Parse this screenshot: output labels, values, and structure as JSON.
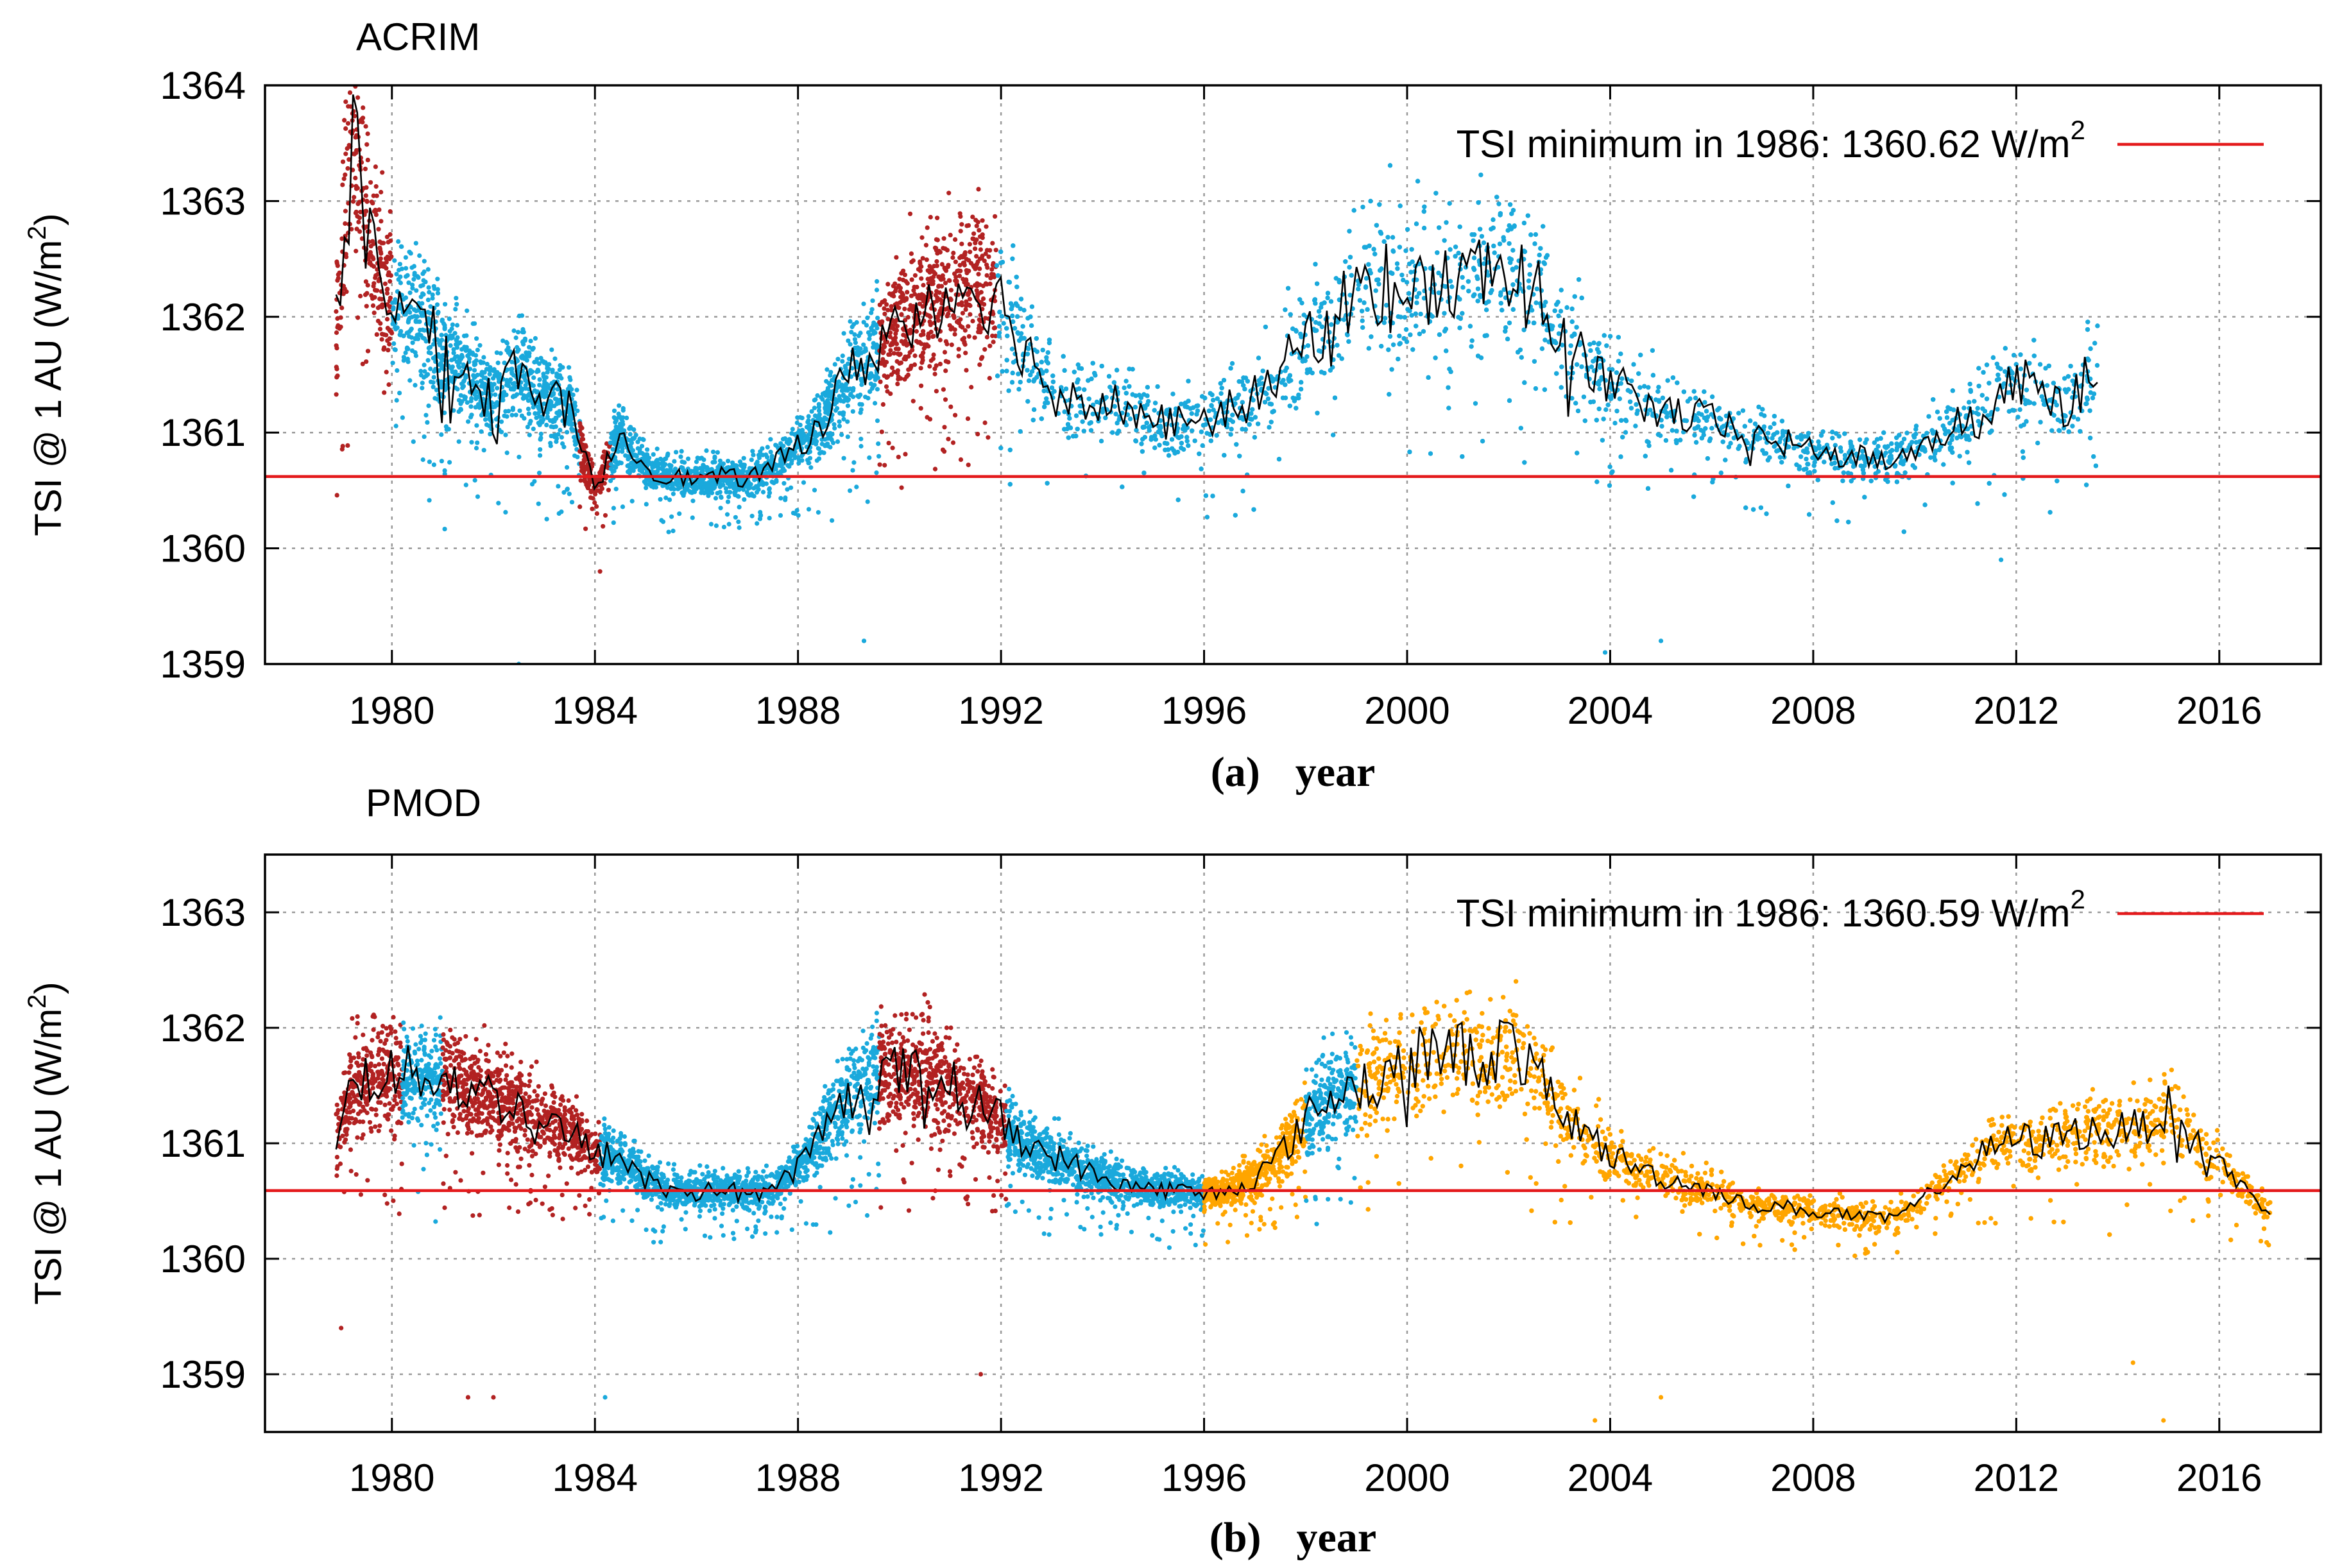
{
  "colors": {
    "acrim_red": "#b22222",
    "cyan": "#1aa9dc",
    "orange": "#ffa500",
    "minimum_line": "#e41a1c",
    "mean_line": "#000000",
    "grid": "#999999"
  },
  "chart_data": [
    {
      "type": "scatter",
      "panel_label": "(a)",
      "title": "ACRIM",
      "xlabel": "year",
      "ylabel": "TSI @ 1 AU (W/m²)",
      "ylabel_main": "TSI @ 1 AU (W/m",
      "ylabel_sup": "2",
      "ylabel_close": ")",
      "xlim": [
        1977.5,
        2018
      ],
      "ylim": [
        1359,
        1364
      ],
      "xticks": [
        "1980",
        "1984",
        "1988",
        "1992",
        "1996",
        "2000",
        "2004",
        "2008",
        "2012",
        "2016"
      ],
      "yticks": [
        "1359",
        "1360",
        "1361",
        "1362",
        "1363",
        "1364"
      ],
      "grid": true,
      "legend": {
        "position": "top-right",
        "label_main": "TSI minimum in 1986: 1360.62 W/m",
        "label_sup": "2",
        "label": "TSI minimum in 1986: 1360.62 W/m²"
      },
      "minimum_value": 1360.62,
      "segments": [
        {
          "name": "red",
          "color": "#b22222",
          "x": [
            1978.9,
            1980.0
          ]
        },
        {
          "name": "cyan",
          "color": "#1aa9dc",
          "x": [
            1980.0,
            1983.7
          ]
        },
        {
          "name": "red",
          "color": "#b22222",
          "x": [
            1983.7,
            1984.3
          ]
        },
        {
          "name": "cyan",
          "color": "#1aa9dc",
          "x": [
            1984.3,
            1989.6
          ]
        },
        {
          "name": "red",
          "color": "#b22222",
          "x": [
            1989.6,
            1991.9
          ]
        },
        {
          "name": "cyan",
          "color": "#1aa9dc",
          "x": [
            1991.9,
            2013.6
          ]
        }
      ],
      "mean_curve": {
        "x": [
          1978.9,
          1979.2,
          1979.6,
          1980,
          1980.5,
          1981,
          1981.5,
          1982,
          1982.5,
          1983,
          1983.5,
          1984,
          1984.5,
          1985,
          1985.5,
          1986,
          1986.5,
          1987,
          1987.5,
          1988,
          1988.5,
          1989,
          1989.5,
          1990,
          1990.5,
          1991,
          1991.5,
          1992,
          1992.5,
          1993,
          1993.5,
          1994,
          1994.5,
          1995,
          1995.5,
          1996,
          1996.5,
          1997,
          1997.5,
          1998,
          1998.5,
          1999,
          1999.5,
          2000,
          2000.5,
          2001,
          2001.5,
          2002,
          2002.5,
          2003,
          2003.5,
          2004,
          2004.5,
          2005,
          2005.5,
          2006,
          2006.5,
          2007,
          2007.5,
          2008,
          2008.5,
          2009,
          2009.5,
          2010,
          2010.5,
          2011,
          2011.5,
          2012,
          2012.5,
          2013,
          2013.6
        ],
        "y": [
          1361.9,
          1363.6,
          1362.6,
          1362.2,
          1362.0,
          1361.7,
          1361.5,
          1361.3,
          1361.6,
          1361.3,
          1361.2,
          1360.5,
          1361.0,
          1360.7,
          1360.62,
          1360.6,
          1360.62,
          1360.6,
          1360.7,
          1360.9,
          1361.1,
          1361.5,
          1361.7,
          1362.0,
          1362.1,
          1362.2,
          1362.3,
          1362.1,
          1361.7,
          1361.4,
          1361.3,
          1361.3,
          1361.2,
          1361.1,
          1361.1,
          1361.1,
          1361.2,
          1361.3,
          1361.5,
          1361.8,
          1362.0,
          1362.2,
          1362.3,
          1362.3,
          1362.2,
          1362.3,
          1362.4,
          1362.5,
          1362.2,
          1361.9,
          1361.6,
          1361.4,
          1361.3,
          1361.2,
          1361.15,
          1361.1,
          1361.0,
          1360.95,
          1360.9,
          1360.85,
          1360.8,
          1360.78,
          1360.75,
          1360.85,
          1361.0,
          1361.1,
          1361.3,
          1361.45,
          1361.35,
          1361.2,
          1361.6
        ]
      },
      "spikes": [
        {
          "x": 1982.5,
          "y": 1359.0
        },
        {
          "x": 1984.1,
          "y": 1359.8
        },
        {
          "x": 1989.3,
          "y": 1359.2
        },
        {
          "x": 2003.9,
          "y": 1359.1
        },
        {
          "x": 2005.0,
          "y": 1359.2
        },
        {
          "x": 2011.7,
          "y": 1359.9
        }
      ]
    },
    {
      "type": "scatter",
      "panel_label": "(b)",
      "title": "PMOD",
      "xlabel": "year",
      "ylabel": "TSI @ 1 AU (W/m²)",
      "ylabel_main": "TSI @ 1 AU (W/m",
      "ylabel_sup": "2",
      "ylabel_close": ")",
      "xlim": [
        1977.5,
        2018
      ],
      "ylim": [
        1358.5,
        1363.5
      ],
      "xticks": [
        "1980",
        "1984",
        "1988",
        "1992",
        "1996",
        "2000",
        "2004",
        "2008",
        "2012",
        "2016"
      ],
      "yticks": [
        "1359",
        "1360",
        "1361",
        "1362",
        "1363"
      ],
      "grid": true,
      "legend": {
        "position": "top-right",
        "label_main": "TSI minimum in 1986: 1360.59 W/m",
        "label_sup": "2",
        "label": "TSI minimum in 1986: 1360.59 W/m²"
      },
      "minimum_value": 1360.59,
      "segments": [
        {
          "name": "red",
          "color": "#b22222",
          "x": [
            1978.9,
            1980.2
          ]
        },
        {
          "name": "cyan",
          "color": "#1aa9dc",
          "x": [
            1980.2,
            1981.0
          ]
        },
        {
          "name": "red",
          "color": "#b22222",
          "x": [
            1981.0,
            1984.1
          ]
        },
        {
          "name": "cyan",
          "color": "#1aa9dc",
          "x": [
            1984.1,
            1989.6
          ]
        },
        {
          "name": "red",
          "color": "#b22222",
          "x": [
            1989.6,
            1992.1
          ]
        },
        {
          "name": "cyan",
          "color": "#1aa9dc",
          "x": [
            1992.1,
            1996.0
          ]
        },
        {
          "name": "orange",
          "color": "#ffa500",
          "x": [
            1996.0,
            1998.0
          ]
        },
        {
          "name": "cyan",
          "color": "#1aa9dc",
          "x": [
            1998.0,
            1999.0
          ]
        },
        {
          "name": "orange",
          "color": "#ffa500",
          "x": [
            1999.0,
            2017.0
          ]
        }
      ],
      "mean_curve": {
        "x": [
          1978.9,
          1979.2,
          1979.6,
          1980,
          1980.5,
          1981,
          1981.5,
          1982,
          1982.5,
          1983,
          1983.5,
          1984,
          1984.5,
          1985,
          1985.5,
          1986,
          1986.5,
          1987,
          1987.5,
          1988,
          1988.5,
          1989,
          1989.5,
          1990,
          1990.5,
          1991,
          1991.5,
          1992,
          1992.5,
          1993,
          1993.5,
          1994,
          1994.5,
          1995,
          1995.5,
          1996,
          1996.5,
          1997,
          1997.5,
          1998,
          1998.5,
          1999,
          1999.5,
          2000,
          2000.5,
          2001,
          2001.5,
          2002,
          2002.5,
          2003,
          2003.5,
          2004,
          2004.5,
          2005,
          2005.5,
          2006,
          2006.5,
          2007,
          2007.5,
          2008,
          2008.5,
          2009,
          2009.5,
          2010,
          2010.5,
          2011,
          2011.5,
          2012,
          2012.5,
          2013,
          2013.5,
          2014,
          2014.5,
          2015,
          2015.5,
          2016,
          2016.5,
          2017
        ],
        "y": [
          1361.0,
          1361.5,
          1361.6,
          1361.6,
          1361.6,
          1361.6,
          1361.5,
          1361.4,
          1361.3,
          1361.2,
          1361.1,
          1360.9,
          1360.9,
          1360.7,
          1360.6,
          1360.58,
          1360.6,
          1360.58,
          1360.6,
          1360.8,
          1361.1,
          1361.4,
          1361.6,
          1361.6,
          1361.6,
          1361.5,
          1361.4,
          1361.2,
          1361.0,
          1360.9,
          1360.8,
          1360.7,
          1360.65,
          1360.6,
          1360.6,
          1360.55,
          1360.6,
          1360.7,
          1360.9,
          1361.2,
          1361.4,
          1361.5,
          1361.6,
          1361.7,
          1361.8,
          1361.8,
          1361.7,
          1361.9,
          1361.6,
          1361.3,
          1361.1,
          1360.9,
          1360.8,
          1360.7,
          1360.65,
          1360.6,
          1360.5,
          1360.45,
          1360.45,
          1360.4,
          1360.4,
          1360.35,
          1360.35,
          1360.45,
          1360.65,
          1360.8,
          1360.95,
          1361.05,
          1361.0,
          1361.1,
          1361.1,
          1361.1,
          1361.15,
          1361.3,
          1361.0,
          1360.85,
          1360.6,
          1360.4
        ]
      },
      "spikes": [
        {
          "x": 1979.0,
          "y": 1359.4
        },
        {
          "x": 1981.5,
          "y": 1358.8
        },
        {
          "x": 1982.0,
          "y": 1358.8
        },
        {
          "x": 1984.2,
          "y": 1358.8
        },
        {
          "x": 1991.6,
          "y": 1359.0
        },
        {
          "x": 2003.7,
          "y": 1358.6
        },
        {
          "x": 2005.0,
          "y": 1358.8
        },
        {
          "x": 2014.3,
          "y": 1359.1
        },
        {
          "x": 2014.9,
          "y": 1358.6
        }
      ]
    }
  ]
}
